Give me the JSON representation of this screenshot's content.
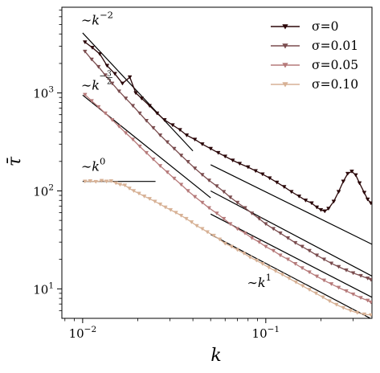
{
  "chart_data": {
    "type": "line",
    "title": "",
    "xlabel": "k",
    "ylabel": "τ̄",
    "xscale": "log",
    "yscale": "log",
    "xlim": [
      0.0077,
      0.38
    ],
    "ylim": [
      5,
      7500
    ],
    "grid": false,
    "legend_position": "top-right",
    "x_ticks": [
      {
        "value": 0.01,
        "base": "10",
        "exp": "−2"
      },
      {
        "value": 0.1,
        "base": "10",
        "exp": "−1"
      }
    ],
    "y_ticks": [
      {
        "value": 10,
        "base": "10",
        "exp": "1"
      },
      {
        "value": 100,
        "base": "10",
        "exp": "2"
      },
      {
        "value": 1000,
        "base": "10",
        "exp": "3"
      }
    ],
    "series": [
      {
        "name": "σ=0",
        "color": "#2a0608",
        "points": [
          [
            0.0103,
            3300
          ],
          [
            0.0113,
            2900
          ],
          [
            0.0124,
            2500
          ],
          [
            0.0136,
            1900
          ],
          [
            0.015,
            1570
          ],
          [
            0.0165,
            1250
          ],
          [
            0.0181,
            1450
          ],
          [
            0.0195,
            1000
          ],
          [
            0.021,
            880
          ],
          [
            0.0232,
            740
          ],
          [
            0.0255,
            620
          ],
          [
            0.028,
            530
          ],
          [
            0.031,
            470
          ],
          [
            0.034,
            420
          ],
          [
            0.037,
            370
          ],
          [
            0.041,
            335
          ],
          [
            0.045,
            300
          ],
          [
            0.05,
            270
          ],
          [
            0.055,
            245
          ],
          [
            0.06,
            225
          ],
          [
            0.066,
            205
          ],
          [
            0.072,
            190
          ],
          [
            0.08,
            175
          ],
          [
            0.088,
            160
          ],
          [
            0.096,
            148
          ],
          [
            0.105,
            135
          ],
          [
            0.115,
            122
          ],
          [
            0.126,
            110
          ],
          [
            0.138,
            98
          ],
          [
            0.152,
            88
          ],
          [
            0.165,
            80
          ],
          [
            0.178,
            75
          ],
          [
            0.19,
            68
          ],
          [
            0.2,
            64
          ],
          [
            0.21,
            62
          ],
          [
            0.22,
            66
          ],
          [
            0.235,
            78
          ],
          [
            0.25,
            98
          ],
          [
            0.265,
            125
          ],
          [
            0.28,
            150
          ],
          [
            0.295,
            158
          ],
          [
            0.31,
            145
          ],
          [
            0.325,
            120
          ],
          [
            0.345,
            96
          ],
          [
            0.36,
            82
          ],
          [
            0.375,
            75
          ]
        ]
      },
      {
        "name": "σ=0.01",
        "color": "#7a4c4e",
        "points": [
          [
            0.0103,
            2650
          ],
          [
            0.0112,
            2200
          ],
          [
            0.0122,
            1850
          ],
          [
            0.0133,
            1520
          ],
          [
            0.0145,
            1250
          ],
          [
            0.0158,
            1040
          ],
          [
            0.0172,
            880
          ],
          [
            0.0188,
            740
          ],
          [
            0.0205,
            620
          ],
          [
            0.0223,
            520
          ],
          [
            0.0243,
            440
          ],
          [
            0.0265,
            370
          ],
          [
            0.029,
            315
          ],
          [
            0.0316,
            270
          ],
          [
            0.0345,
            230
          ],
          [
            0.0376,
            198
          ],
          [
            0.041,
            170
          ],
          [
            0.045,
            146
          ],
          [
            0.049,
            128
          ],
          [
            0.054,
            112
          ],
          [
            0.059,
            98
          ],
          [
            0.064,
            86
          ],
          [
            0.07,
            76
          ],
          [
            0.077,
            67
          ],
          [
            0.084,
            59
          ],
          [
            0.092,
            52
          ],
          [
            0.1,
            46
          ],
          [
            0.11,
            41
          ],
          [
            0.12,
            37
          ],
          [
            0.132,
            33
          ],
          [
            0.145,
            29.5
          ],
          [
            0.158,
            27
          ],
          [
            0.173,
            24.5
          ],
          [
            0.19,
            22
          ],
          [
            0.208,
            20
          ],
          [
            0.228,
            18.2
          ],
          [
            0.25,
            16.8
          ],
          [
            0.275,
            15.5
          ],
          [
            0.3,
            14.5
          ],
          [
            0.33,
            13.6
          ],
          [
            0.36,
            12.8
          ],
          [
            0.375,
            12.4
          ]
        ]
      },
      {
        "name": "σ=0.05",
        "color": "#b67a7a",
        "points": [
          [
            0.0103,
            960
          ],
          [
            0.0112,
            830
          ],
          [
            0.0122,
            720
          ],
          [
            0.0133,
            620
          ],
          [
            0.0145,
            530
          ],
          [
            0.0158,
            455
          ],
          [
            0.0172,
            390
          ],
          [
            0.0188,
            335
          ],
          [
            0.0205,
            285
          ],
          [
            0.0223,
            245
          ],
          [
            0.0243,
            210
          ],
          [
            0.0265,
            180
          ],
          [
            0.029,
            155
          ],
          [
            0.0316,
            134
          ],
          [
            0.0345,
            116
          ],
          [
            0.0376,
            100
          ],
          [
            0.041,
            87
          ],
          [
            0.045,
            76
          ],
          [
            0.049,
            67
          ],
          [
            0.054,
            59
          ],
          [
            0.059,
            52
          ],
          [
            0.064,
            46
          ],
          [
            0.07,
            41
          ],
          [
            0.077,
            37
          ],
          [
            0.084,
            33
          ],
          [
            0.092,
            30
          ],
          [
            0.1,
            27
          ],
          [
            0.11,
            24.5
          ],
          [
            0.12,
            22
          ],
          [
            0.132,
            20
          ],
          [
            0.145,
            18
          ],
          [
            0.158,
            16.3
          ],
          [
            0.173,
            14.8
          ],
          [
            0.19,
            13.4
          ],
          [
            0.208,
            12.2
          ],
          [
            0.228,
            11.2
          ],
          [
            0.25,
            10.3
          ],
          [
            0.275,
            9.5
          ],
          [
            0.3,
            8.8
          ],
          [
            0.33,
            8.1
          ],
          [
            0.36,
            7.6
          ],
          [
            0.375,
            7.3
          ]
        ]
      },
      {
        "name": "σ=0.10",
        "color": "#d7b195",
        "points": [
          [
            0.0103,
            125
          ],
          [
            0.011,
            126
          ],
          [
            0.0118,
            124
          ],
          [
            0.0127,
            127
          ],
          [
            0.0135,
            125
          ],
          [
            0.0143,
            126
          ],
          [
            0.0152,
            120
          ],
          [
            0.016,
            116
          ],
          [
            0.017,
            114
          ],
          [
            0.018,
            106
          ],
          [
            0.019,
            100
          ],
          [
            0.0203,
            94
          ],
          [
            0.0217,
            88
          ],
          [
            0.0232,
            83
          ],
          [
            0.0248,
            78
          ],
          [
            0.0265,
            73
          ],
          [
            0.0283,
            68
          ],
          [
            0.0302,
            64
          ],
          [
            0.0323,
            60
          ],
          [
            0.0345,
            56
          ],
          [
            0.0368,
            52
          ],
          [
            0.0393,
            48
          ],
          [
            0.042,
            44
          ],
          [
            0.045,
            41
          ],
          [
            0.048,
            38
          ],
          [
            0.052,
            35
          ],
          [
            0.056,
            32
          ],
          [
            0.06,
            29
          ],
          [
            0.065,
            27
          ],
          [
            0.07,
            25
          ],
          [
            0.076,
            23
          ],
          [
            0.082,
            21
          ],
          [
            0.089,
            19.5
          ],
          [
            0.096,
            18
          ],
          [
            0.104,
            16.5
          ],
          [
            0.113,
            15.2
          ],
          [
            0.123,
            14
          ],
          [
            0.134,
            12.8
          ],
          [
            0.146,
            11.7
          ],
          [
            0.159,
            10.7
          ],
          [
            0.173,
            9.8
          ],
          [
            0.188,
            9
          ],
          [
            0.205,
            8.2
          ],
          [
            0.223,
            7.5
          ],
          [
            0.243,
            6.9
          ],
          [
            0.265,
            6.4
          ],
          [
            0.29,
            6
          ],
          [
            0.316,
            5.7
          ],
          [
            0.345,
            5.5
          ],
          [
            0.375,
            5.4
          ]
        ]
      }
    ],
    "reference_lines": [
      {
        "label": "−2",
        "x1": 0.01,
        "y1": 4100,
        "x2": 0.04,
        "y2": 256
      },
      {
        "label": "−3/2",
        "x1": 0.01,
        "y1": 950,
        "x2": 0.05,
        "y2": 85
      },
      {
        "label": "0",
        "x1": 0.01,
        "y1": 125,
        "x2": 0.025,
        "y2": 125
      },
      {
        "label": "1",
        "x1": 0.05,
        "y1": 185,
        "x2": 0.38,
        "y2": 28.5
      },
      {
        "label": "1",
        "x1": 0.05,
        "y1": 100,
        "x2": 0.38,
        "y2": 13.5
      },
      {
        "label": "1",
        "x1": 0.05,
        "y1": 58,
        "x2": 0.38,
        "y2": 8.2
      },
      {
        "label": "1",
        "x1": 0.05,
        "y1": 36,
        "x2": 0.38,
        "y2": 4.9
      }
    ],
    "annotations": [
      {
        "prefix": "∼",
        "var": "k",
        "exp": "−2",
        "exp_style": "plain",
        "x": 0.0098,
        "y": 5000
      },
      {
        "prefix": "∼",
        "var": "k",
        "num": "3",
        "den": "2",
        "exp_style": "frac",
        "x": 0.0098,
        "y": 1080
      },
      {
        "prefix": "∼",
        "var": "k",
        "exp": "0",
        "exp_style": "plain",
        "x": 0.0098,
        "y": 160
      },
      {
        "prefix": "∼",
        "var": "k",
        "exp": "1",
        "exp_style": "plain",
        "x": 0.079,
        "y": 10.4
      }
    ]
  }
}
